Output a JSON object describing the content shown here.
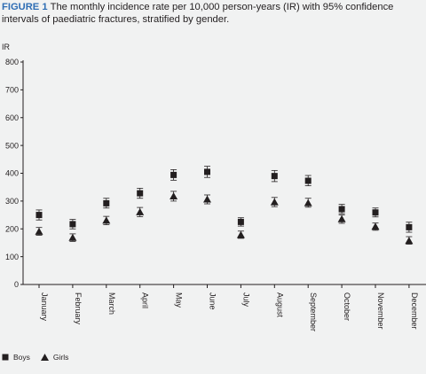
{
  "caption": {
    "label": "FIGURE 1",
    "text": "The monthly incidence rate per 10,000 person-years (IR) with 95% confidence intervals of paediatric fractures, stratified by gender."
  },
  "colors": {
    "marker": "#231f20",
    "label": "#2e6db4",
    "background": "#f1f2f2"
  },
  "chart_data": {
    "type": "scatter",
    "ylabel": "IR",
    "ylim": [
      0,
      800
    ],
    "yticks": [
      0,
      100,
      200,
      300,
      400,
      500,
      600,
      700,
      800
    ],
    "categories": [
      "January",
      "February",
      "March",
      "April",
      "May",
      "June",
      "July",
      "August",
      "September",
      "October",
      "November",
      "December"
    ],
    "series": [
      {
        "name": "Boys",
        "marker": "square",
        "values": [
          250,
          217,
          292,
          328,
          394,
          405,
          225,
          390,
          373,
          271,
          259,
          206
        ],
        "ci_low": [
          232,
          200,
          275,
          310,
          375,
          385,
          210,
          370,
          355,
          255,
          243,
          188
        ],
        "ci_high": [
          268,
          234,
          310,
          346,
          413,
          425,
          240,
          410,
          392,
          288,
          275,
          224
        ]
      },
      {
        "name": "Girls",
        "marker": "triangle",
        "values": [
          190,
          168,
          230,
          260,
          317,
          306,
          178,
          296,
          293,
          235,
          208,
          157
        ],
        "ci_low": [
          177,
          155,
          215,
          244,
          300,
          290,
          166,
          280,
          278,
          220,
          195,
          145
        ],
        "ci_high": [
          205,
          182,
          245,
          277,
          335,
          322,
          192,
          313,
          310,
          250,
          221,
          172
        ]
      }
    ],
    "grid": false,
    "legend": "bottom-left"
  }
}
